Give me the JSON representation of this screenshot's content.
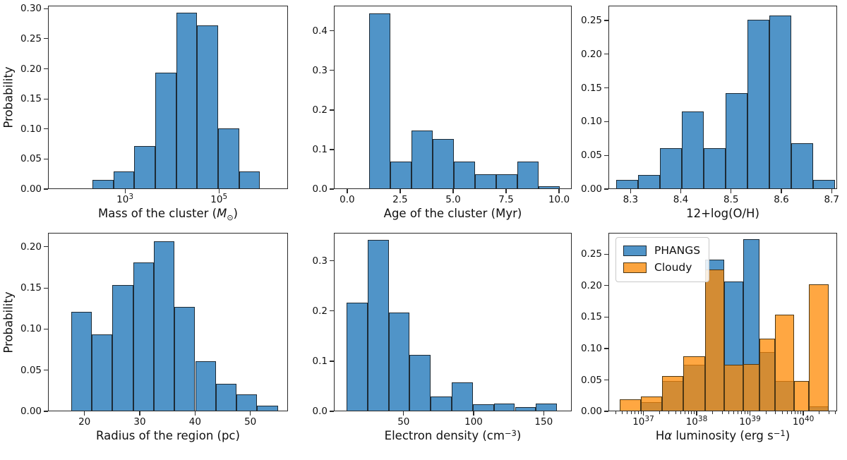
{
  "figure": {
    "background": "#ffffff",
    "axis_color": "#2a2a2a",
    "text_color": "#111111",
    "blue_fill": "#5094c8",
    "blue_edge": "#1d2b36",
    "orange_fill": "rgba(255,138,3,0.75)",
    "orange_solid": "#fba43f",
    "orange_edge": "#4d3714",
    "legend_bg": "rgba(255,255,255,0.85)",
    "legend_border": "#c9c9c9"
  },
  "chart_data": [
    {
      "type": "bar",
      "kind": "histogram",
      "xlabel": "Mass of the cluster (M⊙)",
      "xlabel_parts": [
        {
          "text": "Mass of the cluster ("
        },
        {
          "text": "M",
          "italic": true
        },
        {
          "text": "⊙",
          "sub": true
        },
        {
          "text": ")"
        }
      ],
      "ylabel": "Probability",
      "x_scale": "log10",
      "xlim": [
        1.36,
        6.47
      ],
      "ylim": [
        0,
        0.305
      ],
      "x_minor_ticks": false,
      "x_ticks": [
        {
          "v": 3,
          "base": "10",
          "exp": "3"
        },
        {
          "v": 5,
          "base": "10",
          "exp": "5"
        }
      ],
      "y_ticks": [
        {
          "v": 0.0,
          "label": "0.00"
        },
        {
          "v": 0.05,
          "label": "0.05"
        },
        {
          "v": 0.1,
          "label": "0.10"
        },
        {
          "v": 0.15,
          "label": "0.15"
        },
        {
          "v": 0.2,
          "label": "0.20"
        },
        {
          "v": 0.25,
          "label": "0.25"
        },
        {
          "v": 0.3,
          "label": "0.30"
        }
      ],
      "series": [
        {
          "name": "",
          "fill": "#5094c8",
          "edge": "#1d2b36",
          "bin_edges": [
            2.29,
            2.736,
            3.182,
            3.628,
            4.074,
            4.52,
            4.966,
            5.412,
            5.858
          ],
          "values": [
            0.014,
            0.028,
            0.071,
            0.192,
            0.292,
            0.271,
            0.1,
            0.028
          ]
        }
      ],
      "legend": null
    },
    {
      "type": "bar",
      "kind": "histogram",
      "xlabel": "Age of the cluster (Myr)",
      "xlabel_parts": [
        {
          "text": "Age of the cluster (Myr)"
        }
      ],
      "ylabel": "",
      "x_scale": "linear",
      "xlim": [
        -0.63,
        10.6
      ],
      "ylim": [
        0,
        0.464
      ],
      "x_minor_ticks": false,
      "x_ticks": [
        {
          "v": 0,
          "label": "0.0"
        },
        {
          "v": 2.5,
          "label": "2.5"
        },
        {
          "v": 5,
          "label": "5.0"
        },
        {
          "v": 7.5,
          "label": "7.5"
        },
        {
          "v": 10,
          "label": "10.0"
        }
      ],
      "y_ticks": [
        {
          "v": 0.0,
          "label": "0.0"
        },
        {
          "v": 0.1,
          "label": "0.1"
        },
        {
          "v": 0.2,
          "label": "0.2"
        },
        {
          "v": 0.3,
          "label": "0.3"
        },
        {
          "v": 0.4,
          "label": "0.4"
        }
      ],
      "series": [
        {
          "name": "",
          "fill": "#5094c8",
          "edge": "#1d2b36",
          "bin_edges": [
            1,
            2,
            3,
            4,
            5,
            6,
            7,
            8,
            9,
            10
          ],
          "values": [
            0.443,
            0.068,
            0.146,
            0.125,
            0.068,
            0.035,
            0.035,
            0.068,
            0.006
          ]
        }
      ],
      "legend": null
    },
    {
      "type": "bar",
      "kind": "histogram",
      "xlabel": "12+log(O/H)",
      "xlabel_parts": [
        {
          "text": "12+log(O/H)"
        }
      ],
      "ylabel": "",
      "x_scale": "linear",
      "xlim": [
        8.256,
        8.711
      ],
      "ylim": [
        0,
        0.272
      ],
      "x_minor_ticks": false,
      "x_ticks": [
        {
          "v": 8.3,
          "label": "8.3"
        },
        {
          "v": 8.4,
          "label": "8.4"
        },
        {
          "v": 8.5,
          "label": "8.5"
        },
        {
          "v": 8.6,
          "label": "8.6"
        },
        {
          "v": 8.7,
          "label": "8.7"
        }
      ],
      "y_ticks": [
        {
          "v": 0.0,
          "label": "0.00"
        },
        {
          "v": 0.05,
          "label": "0.05"
        },
        {
          "v": 0.1,
          "label": "0.10"
        },
        {
          "v": 0.15,
          "label": "0.15"
        },
        {
          "v": 0.2,
          "label": "0.20"
        },
        {
          "v": 0.25,
          "label": "0.25"
        }
      ],
      "series": [
        {
          "name": "",
          "fill": "#5094c8",
          "edge": "#1d2b36",
          "bin_edges": [
            8.27,
            8.3135,
            8.357,
            8.4005,
            8.444,
            8.4875,
            8.531,
            8.5745,
            8.618,
            8.6615,
            8.705
          ],
          "values": [
            0.013,
            0.02,
            0.06,
            0.114,
            0.06,
            0.141,
            0.25,
            0.256,
            0.067,
            0.013
          ]
        }
      ],
      "legend": null
    },
    {
      "type": "bar",
      "kind": "histogram",
      "xlabel": "Radius of the region (pc)",
      "xlabel_parts": [
        {
          "text": "Radius of the region (pc)"
        }
      ],
      "ylabel": "Probability",
      "x_scale": "linear",
      "xlim": [
        13.4,
        56.8
      ],
      "ylim": [
        0,
        0.217
      ],
      "x_minor_ticks": false,
      "x_ticks": [
        {
          "v": 20,
          "label": "20"
        },
        {
          "v": 30,
          "label": "30"
        },
        {
          "v": 40,
          "label": "40"
        },
        {
          "v": 50,
          "label": "50"
        }
      ],
      "y_ticks": [
        {
          "v": 0.0,
          "label": "0.00"
        },
        {
          "v": 0.05,
          "label": "0.05"
        },
        {
          "v": 0.1,
          "label": "0.10"
        },
        {
          "v": 0.15,
          "label": "0.15"
        },
        {
          "v": 0.2,
          "label": "0.20"
        }
      ],
      "series": [
        {
          "name": "",
          "fill": "#5094c8",
          "edge": "#1d2b36",
          "bin_edges": [
            17.45,
            21.19,
            24.93,
            28.67,
            32.41,
            36.15,
            39.89,
            43.63,
            47.37,
            51.11,
            54.85
          ],
          "values": [
            0.12,
            0.093,
            0.153,
            0.18,
            0.206,
            0.126,
            0.06,
            0.033,
            0.02,
            0.006
          ]
        }
      ],
      "legend": null
    },
    {
      "type": "bar",
      "kind": "histogram",
      "xlabel": "Electron density (cm−3)",
      "xlabel_parts": [
        {
          "text": "Electron density (cm"
        },
        {
          "text": "−3",
          "sup": true
        },
        {
          "text": ")"
        }
      ],
      "ylabel": "",
      "x_scale": "linear",
      "xlim": [
        0.25,
        170
      ],
      "ylim": [
        0,
        0.356
      ],
      "x_minor_ticks": false,
      "x_ticks": [
        {
          "v": 50,
          "label": "50"
        },
        {
          "v": 100,
          "label": "100"
        },
        {
          "v": 150,
          "label": "150"
        }
      ],
      "y_ticks": [
        {
          "v": 0.0,
          "label": "0.0"
        },
        {
          "v": 0.1,
          "label": "0.1"
        },
        {
          "v": 0.2,
          "label": "0.2"
        },
        {
          "v": 0.3,
          "label": "0.3"
        }
      ],
      "series": [
        {
          "name": "",
          "fill": "#5094c8",
          "edge": "#1d2b36",
          "bin_edges": [
            8.8,
            23.82,
            38.84,
            53.86,
            68.88,
            83.9,
            98.92,
            113.94,
            128.96,
            143.98,
            159.0
          ],
          "values": [
            0.216,
            0.34,
            0.196,
            0.111,
            0.028,
            0.056,
            0.013,
            0.014,
            0.007,
            0.014
          ]
        }
      ],
      "legend": null
    },
    {
      "type": "bar",
      "kind": "histogram-overlay",
      "xlabel": "Hα luminosity (erg s−1)",
      "xlabel_parts": [
        {
          "text": "H"
        },
        {
          "text": "α",
          "italic": true
        },
        {
          "text": " luminosity (erg s"
        },
        {
          "text": "−1",
          "sup": true
        },
        {
          "text": ")"
        }
      ],
      "ylabel": "",
      "x_scale": "log10",
      "xlim": [
        36.344,
        40.635
      ],
      "ylim": [
        0,
        0.284
      ],
      "x_minor_ticks": true,
      "x_ticks": [
        {
          "v": 37,
          "base": "10",
          "exp": "37"
        },
        {
          "v": 38,
          "base": "10",
          "exp": "38"
        },
        {
          "v": 39,
          "base": "10",
          "exp": "39"
        },
        {
          "v": 40,
          "base": "10",
          "exp": "40"
        }
      ],
      "y_ticks": [
        {
          "v": 0.0,
          "label": "0.00"
        },
        {
          "v": 0.05,
          "label": "0.05"
        },
        {
          "v": 0.1,
          "label": "0.10"
        },
        {
          "v": 0.15,
          "label": "0.15"
        },
        {
          "v": 0.2,
          "label": "0.20"
        },
        {
          "v": 0.25,
          "label": "0.25"
        }
      ],
      "series": [
        {
          "name": "PHANGS",
          "fill": "#5094c8",
          "edge": "#1d2b36",
          "bin_edges": [
            36.94,
            37.337,
            37.735,
            38.145,
            38.503,
            38.86,
            39.165,
            39.456,
            39.814,
            40.092,
            40.463
          ],
          "values": [
            0.013,
            0.047,
            0.073,
            0.24,
            0.206,
            0.273,
            0.093,
            0.047,
            0.0,
            0.007
          ]
        },
        {
          "name": "Cloudy",
          "fill": "rgba(255,138,3,0.75)",
          "edge": "#4d3714",
          "bin_edges": [
            36.543,
            36.94,
            37.337,
            37.735,
            38.145,
            38.503,
            38.86,
            39.165,
            39.456,
            39.814,
            40.092,
            40.463
          ],
          "values": [
            0.018,
            0.023,
            0.055,
            0.086,
            0.225,
            0.073,
            0.074,
            0.115,
            0.153,
            0.047,
            0.201
          ]
        }
      ],
      "legend": {
        "position": "upper-left",
        "entries": [
          {
            "label": "PHANGS",
            "swatch": "#5094c8",
            "swatch_edge": "#1d2b36"
          },
          {
            "label": "Cloudy",
            "swatch": "#fba43f",
            "swatch_edge": "#4d3714"
          }
        ]
      }
    }
  ]
}
